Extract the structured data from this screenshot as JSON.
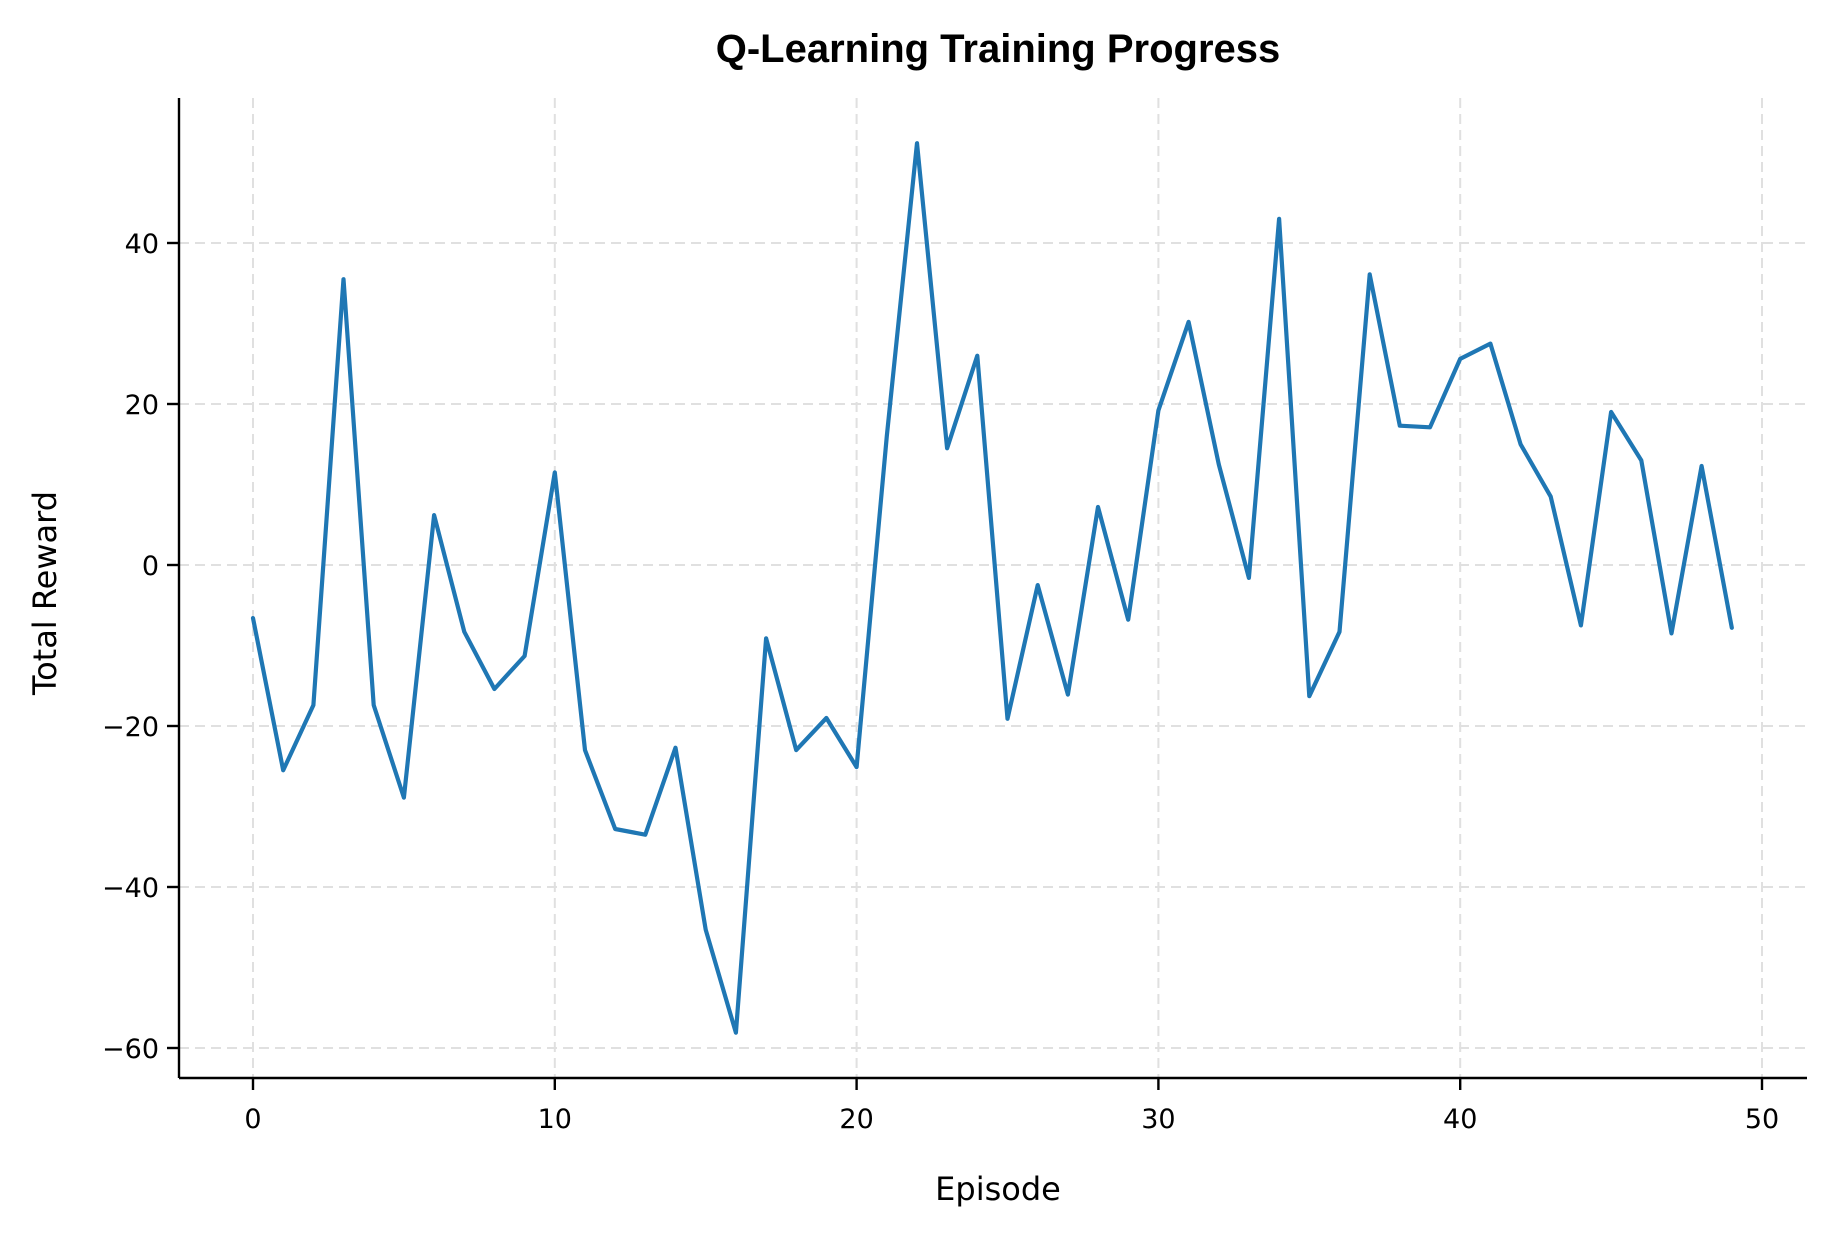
{
  "chart_data": {
    "type": "line",
    "title": "Q-Learning Training Progress",
    "xlabel": "Episode",
    "ylabel": "Total Reward",
    "xlim": [
      -2.4,
      51.5
    ],
    "ylim": [
      -63.7,
      57.8
    ],
    "xticks": [
      0,
      10,
      20,
      30,
      40,
      50
    ],
    "yticks": [
      -60,
      -40,
      -20,
      0,
      20,
      40
    ],
    "xtick_labels": [
      "0",
      "10",
      "20",
      "30",
      "40",
      "50"
    ],
    "ytick_labels": [
      "−60",
      "−40",
      "−20",
      "0",
      "20",
      "40"
    ],
    "grid": true,
    "grid_style": "dashed",
    "legend": null,
    "series": [
      {
        "name": "Total Reward",
        "color": "#1f77b4",
        "x": [
          0,
          1,
          2,
          3,
          4,
          5,
          6,
          7,
          8,
          9,
          10,
          11,
          12,
          13,
          14,
          15,
          16,
          17,
          18,
          19,
          20,
          21,
          22,
          23,
          24,
          25,
          26,
          27,
          28,
          29,
          30,
          31,
          32,
          33,
          34,
          35,
          36,
          37,
          38,
          39,
          40,
          41,
          42,
          43,
          44,
          45,
          46,
          47,
          48,
          49
        ],
        "values": [
          -6.6,
          -25.5,
          -17.4,
          35.5,
          -17.4,
          -28.9,
          6.2,
          -8.3,
          -15.4,
          -11.3,
          11.5,
          -23.0,
          -32.8,
          -33.5,
          -22.7,
          -45.3,
          -58.1,
          -9.1,
          -23.0,
          -19.0,
          -25.1,
          16.0,
          52.4,
          14.5,
          26.0,
          -19.1,
          -2.5,
          -16.1,
          7.2,
          -6.8,
          19.2,
          30.2,
          12.5,
          -1.6,
          43.0,
          -16.3,
          -8.3,
          36.1,
          17.3,
          17.1,
          25.6,
          27.5,
          15.0,
          8.5,
          -7.5,
          19.0,
          13.0,
          -8.5,
          12.3,
          -7.8
        ]
      }
    ]
  },
  "colors": {
    "line": "#1f77b4",
    "grid": "#e0e0e0",
    "axis": "#000000",
    "background": "#ffffff"
  }
}
